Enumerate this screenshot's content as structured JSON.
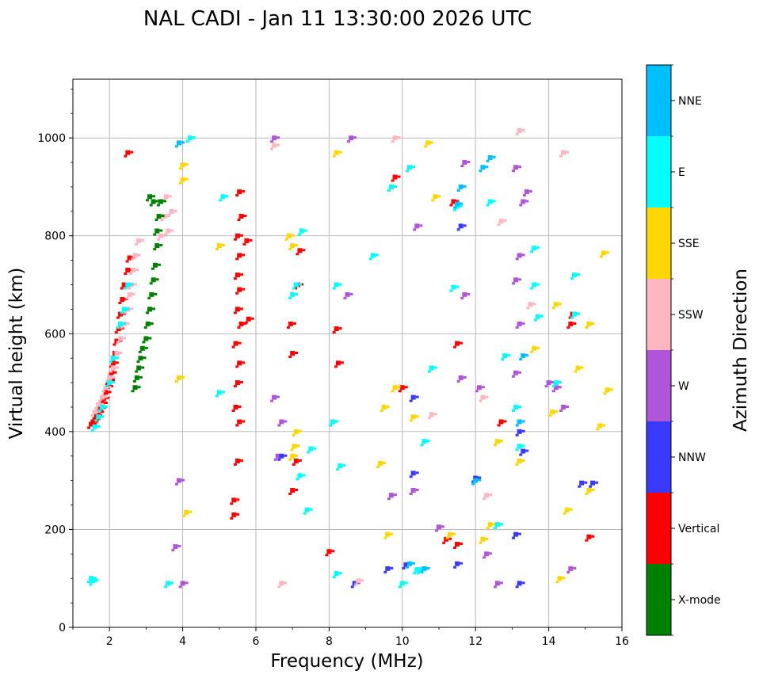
{
  "chart_data": {
    "type": "scatter",
    "title": "NAL CADI - Jan 11 13:30:00 2026 UTC",
    "xlabel": "Frequency (MHz)",
    "ylabel": "Virtual height (km)",
    "xlim": [
      1,
      16
    ],
    "ylim": [
      0,
      1120
    ],
    "xticks": [
      2,
      4,
      6,
      8,
      10,
      12,
      14,
      16
    ],
    "yticks": [
      0,
      200,
      400,
      600,
      800,
      1000
    ],
    "grid": true,
    "colorbar": {
      "label": "Azimuth Direction",
      "categories": [
        {
          "name": "X-mode",
          "color": "#008000"
        },
        {
          "name": "Vertical",
          "color": "#ff0000"
        },
        {
          "name": "NNW",
          "color": "#3a3aff"
        },
        {
          "name": "W",
          "color": "#b155d8"
        },
        {
          "name": "SSW",
          "color": "#ffb6c1"
        },
        {
          "name": "SSE",
          "color": "#ffd700"
        },
        {
          "name": "E",
          "color": "#00ffff"
        },
        {
          "name": "NNE",
          "color": "#00bfff"
        }
      ]
    },
    "traces": [
      {
        "category": "Vertical",
        "points": [
          [
            1.5,
            415
          ],
          [
            1.55,
            420
          ],
          [
            1.6,
            425
          ],
          [
            1.65,
            432
          ],
          [
            1.7,
            440
          ],
          [
            1.75,
            448
          ],
          [
            1.8,
            458
          ],
          [
            1.85,
            468
          ],
          [
            1.9,
            480
          ],
          [
            1.95,
            492
          ],
          [
            2.0,
            505
          ],
          [
            2.05,
            520
          ],
          [
            2.1,
            540
          ],
          [
            2.15,
            560
          ],
          [
            2.2,
            585
          ],
          [
            2.25,
            610
          ],
          [
            2.3,
            640
          ],
          [
            2.35,
            670
          ],
          [
            2.4,
            700
          ],
          [
            2.5,
            730
          ],
          [
            2.55,
            755
          ]
        ]
      },
      {
        "category": "SSW",
        "points": [
          [
            1.6,
            440
          ],
          [
            1.7,
            455
          ],
          [
            1.8,
            470
          ],
          [
            1.9,
            490
          ],
          [
            2.0,
            510
          ],
          [
            2.1,
            530
          ],
          [
            2.2,
            560
          ],
          [
            2.3,
            590
          ],
          [
            2.4,
            620
          ],
          [
            2.5,
            650
          ],
          [
            2.55,
            680
          ],
          [
            2.6,
            700
          ],
          [
            2.65,
            730
          ],
          [
            2.7,
            760
          ],
          [
            2.8,
            790
          ],
          [
            3.4,
            800
          ],
          [
            3.5,
            840
          ],
          [
            3.55,
            880
          ]
        ]
      },
      {
        "category": "E",
        "points": [
          [
            1.6,
            410
          ],
          [
            1.7,
            430
          ],
          [
            1.8,
            450
          ],
          [
            2.0,
            500
          ],
          [
            2.1,
            550
          ],
          [
            2.3,
            620
          ],
          [
            2.4,
            650
          ],
          [
            2.5,
            700
          ]
        ]
      },
      {
        "category": "X-mode",
        "points": [
          [
            2.7,
            490
          ],
          [
            2.75,
            510
          ],
          [
            2.8,
            530
          ],
          [
            2.85,
            550
          ],
          [
            2.9,
            570
          ],
          [
            3.0,
            590
          ],
          [
            3.05,
            620
          ],
          [
            3.1,
            650
          ],
          [
            3.15,
            680
          ],
          [
            3.2,
            710
          ],
          [
            3.25,
            740
          ],
          [
            3.3,
            780
          ],
          [
            3.3,
            810
          ],
          [
            3.35,
            840
          ],
          [
            3.2,
            870
          ],
          [
            3.4,
            870
          ],
          [
            3.1,
            880
          ]
        ]
      },
      {
        "category": "Vertical",
        "points": [
          [
            5.4,
            230
          ],
          [
            5.4,
            260
          ],
          [
            5.5,
            340
          ],
          [
            5.55,
            420
          ],
          [
            5.45,
            450
          ],
          [
            5.5,
            500
          ],
          [
            5.55,
            540
          ],
          [
            5.45,
            580
          ],
          [
            5.6,
            620
          ],
          [
            5.5,
            650
          ],
          [
            5.55,
            690
          ],
          [
            5.5,
            720
          ],
          [
            5.55,
            760
          ],
          [
            5.5,
            800
          ],
          [
            5.6,
            840
          ],
          [
            5.55,
            890
          ],
          [
            5.8,
            630
          ],
          [
            5.75,
            790
          ]
        ]
      },
      {
        "category": "Vertical",
        "points": [
          [
            7.0,
            280
          ],
          [
            7.1,
            340
          ],
          [
            7.0,
            560
          ],
          [
            6.95,
            620
          ],
          [
            7.15,
            700
          ],
          [
            7.2,
            770
          ],
          [
            8.2,
            610
          ],
          [
            8.25,
            540
          ],
          [
            10.0,
            490
          ],
          [
            11.5,
            580
          ],
          [
            12.7,
            420
          ],
          [
            14.6,
            620
          ],
          [
            14.65,
            640
          ],
          [
            15.1,
            185
          ],
          [
            11.2,
            180
          ],
          [
            9.8,
            920
          ],
          [
            11.4,
            870
          ],
          [
            11.5,
            170
          ],
          [
            8.0,
            155
          ],
          [
            2.5,
            970
          ]
        ]
      },
      {
        "category": "W",
        "points": [
          [
            4.0,
            90
          ],
          [
            3.8,
            165
          ],
          [
            3.9,
            300
          ],
          [
            6.7,
            420
          ],
          [
            6.6,
            350
          ],
          [
            6.5,
            470
          ],
          [
            8.5,
            680
          ],
          [
            9.7,
            270
          ],
          [
            10.3,
            280
          ],
          [
            11.0,
            205
          ],
          [
            11.7,
            680
          ],
          [
            12.1,
            490
          ],
          [
            12.3,
            150
          ],
          [
            12.6,
            90
          ],
          [
            13.1,
            520
          ],
          [
            13.2,
            620
          ],
          [
            13.1,
            710
          ],
          [
            13.2,
            760
          ],
          [
            13.3,
            870
          ],
          [
            13.1,
            940
          ],
          [
            13.4,
            890
          ],
          [
            14.0,
            500
          ],
          [
            14.2,
            490
          ],
          [
            14.4,
            450
          ],
          [
            14.6,
            120
          ],
          [
            11.7,
            950
          ],
          [
            10.4,
            820
          ],
          [
            11.6,
            510
          ],
          [
            6.5,
            1000
          ],
          [
            8.6,
            1000
          ]
        ]
      },
      {
        "category": "NNW",
        "points": [
          [
            8.7,
            90
          ],
          [
            9.6,
            120
          ],
          [
            10.3,
            315
          ],
          [
            10.3,
            470
          ],
          [
            10.1,
            128
          ],
          [
            11.5,
            130
          ],
          [
            12.0,
            305
          ],
          [
            13.1,
            190
          ],
          [
            13.3,
            360
          ],
          [
            13.2,
            400
          ],
          [
            14.9,
            295
          ],
          [
            15.2,
            295
          ],
          [
            11.6,
            820
          ],
          [
            13.2,
            90
          ],
          [
            6.7,
            350
          ]
        ]
      },
      {
        "category": "SSE",
        "points": [
          [
            4.1,
            235
          ],
          [
            3.9,
            510
          ],
          [
            4.0,
            915
          ],
          [
            4.0,
            945
          ],
          [
            5.0,
            780
          ],
          [
            7.0,
            350
          ],
          [
            7.05,
            370
          ],
          [
            7.1,
            400
          ],
          [
            6.9,
            800
          ],
          [
            7.0,
            780
          ],
          [
            9.4,
            335
          ],
          [
            9.5,
            450
          ],
          [
            9.8,
            490
          ],
          [
            10.3,
            430
          ],
          [
            10.7,
            990
          ],
          [
            11.3,
            190
          ],
          [
            12.2,
            180
          ],
          [
            12.4,
            210
          ],
          [
            12.6,
            380
          ],
          [
            13.2,
            340
          ],
          [
            13.6,
            570
          ],
          [
            14.1,
            440
          ],
          [
            14.2,
            660
          ],
          [
            14.5,
            240
          ],
          [
            14.8,
            530
          ],
          [
            15.1,
            620
          ],
          [
            15.1,
            280
          ],
          [
            15.5,
            765
          ],
          [
            15.6,
            485
          ],
          [
            15.4,
            412
          ],
          [
            14.3,
            100
          ],
          [
            8.2,
            970
          ],
          [
            10.9,
            880
          ],
          [
            9.6,
            190
          ]
        ]
      },
      {
        "category": "SSW",
        "points": [
          [
            6.5,
            985
          ],
          [
            9.8,
            1000
          ],
          [
            12.3,
            270
          ],
          [
            12.7,
            830
          ],
          [
            13.2,
            1015
          ],
          [
            14.4,
            970
          ],
          [
            12.2,
            470
          ],
          [
            6.7,
            90
          ],
          [
            8.8,
            95
          ],
          [
            13.5,
            660
          ],
          [
            3.6,
            810
          ],
          [
            3.7,
            850
          ],
          [
            10.8,
            435
          ]
        ]
      },
      {
        "category": "E",
        "points": [
          [
            1.5,
            100
          ],
          [
            1.55,
            95
          ],
          [
            3.6,
            90
          ],
          [
            4.2,
            1000
          ],
          [
            5.1,
            880
          ],
          [
            5.0,
            480
          ],
          [
            7.0,
            680
          ],
          [
            7.1,
            700
          ],
          [
            7.25,
            810
          ],
          [
            7.2,
            310
          ],
          [
            7.4,
            240
          ],
          [
            7.5,
            365
          ],
          [
            8.2,
            700
          ],
          [
            8.1,
            420
          ],
          [
            8.3,
            330
          ],
          [
            8.2,
            110
          ],
          [
            9.7,
            900
          ],
          [
            10.2,
            940
          ],
          [
            10.6,
            380
          ],
          [
            10.4,
            118
          ],
          [
            10.5,
            118
          ],
          [
            11.4,
            695
          ],
          [
            11.5,
            860
          ],
          [
            12.4,
            870
          ],
          [
            12.6,
            210
          ],
          [
            12.8,
            555
          ],
          [
            13.1,
            450
          ],
          [
            13.2,
            370
          ],
          [
            13.6,
            700
          ],
          [
            13.6,
            775
          ],
          [
            13.7,
            635
          ],
          [
            14.2,
            500
          ],
          [
            14.7,
            640
          ],
          [
            14.7,
            720
          ],
          [
            10.8,
            530
          ],
          [
            9.2,
            760
          ],
          [
            10.0,
            90
          ]
        ]
      },
      {
        "category": "NNE",
        "points": [
          [
            10.2,
            130
          ],
          [
            10.6,
            120
          ],
          [
            11.6,
            900
          ],
          [
            11.5,
            865
          ],
          [
            3.9,
            990
          ],
          [
            12.0,
            300
          ],
          [
            13.2,
            420
          ],
          [
            13.3,
            555
          ],
          [
            12.4,
            960
          ],
          [
            12.2,
            940
          ]
        ]
      }
    ]
  }
}
